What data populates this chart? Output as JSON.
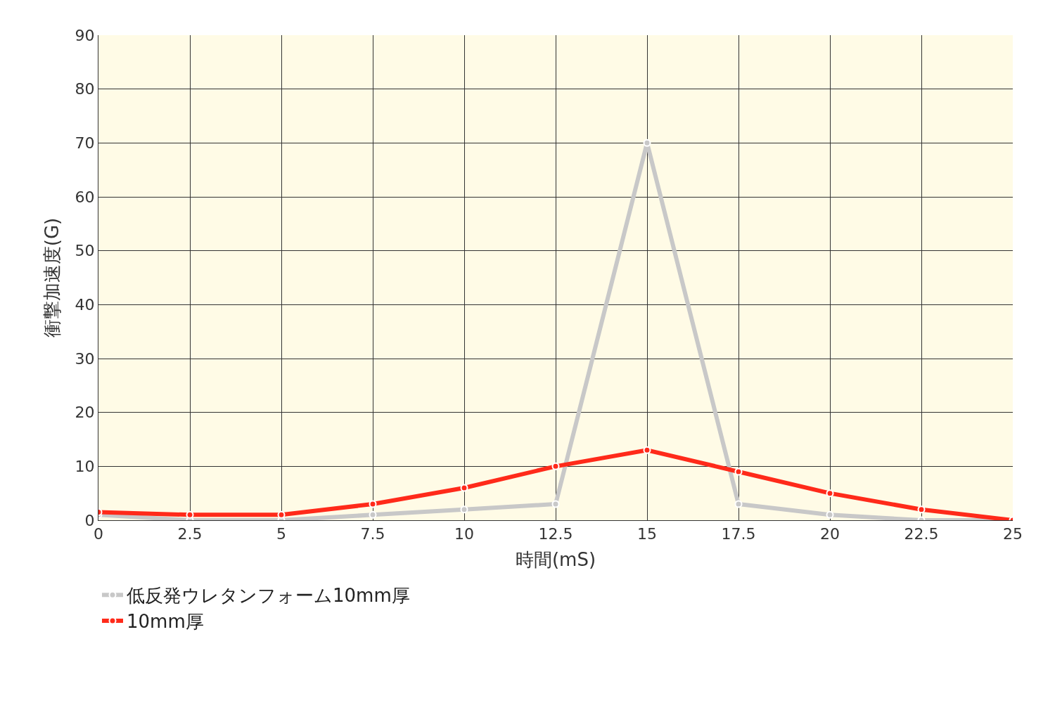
{
  "chart_data": {
    "type": "line",
    "xlabel": "時間(mS)",
    "ylabel": "衝撃加速度(G)",
    "x": [
      0,
      2.5,
      5,
      7.5,
      10,
      12.5,
      15,
      17.5,
      20,
      22.5,
      25
    ],
    "series": [
      {
        "name": "低反発ウレタンフォーム10mm厚",
        "color": "#c8c8c8",
        "values": [
          1,
          0,
          0,
          1,
          2,
          3,
          70,
          3,
          1,
          0,
          0
        ]
      },
      {
        "name": "10mm厚",
        "color": "#ff2a1a",
        "values": [
          1.5,
          1,
          1,
          3,
          6,
          10,
          13,
          9,
          5,
          2,
          0
        ]
      }
    ],
    "xlim": [
      0,
      25
    ],
    "xticks": [
      0,
      2.5,
      5,
      7.5,
      10,
      12.5,
      15,
      17.5,
      20,
      22.5,
      25
    ],
    "ylim": [
      0,
      90
    ],
    "yticks": [
      0,
      10,
      20,
      30,
      40,
      50,
      60,
      70,
      80,
      90
    ],
    "grid": true,
    "legend": "bottom left",
    "marker": "circle",
    "line_style": "solid"
  }
}
